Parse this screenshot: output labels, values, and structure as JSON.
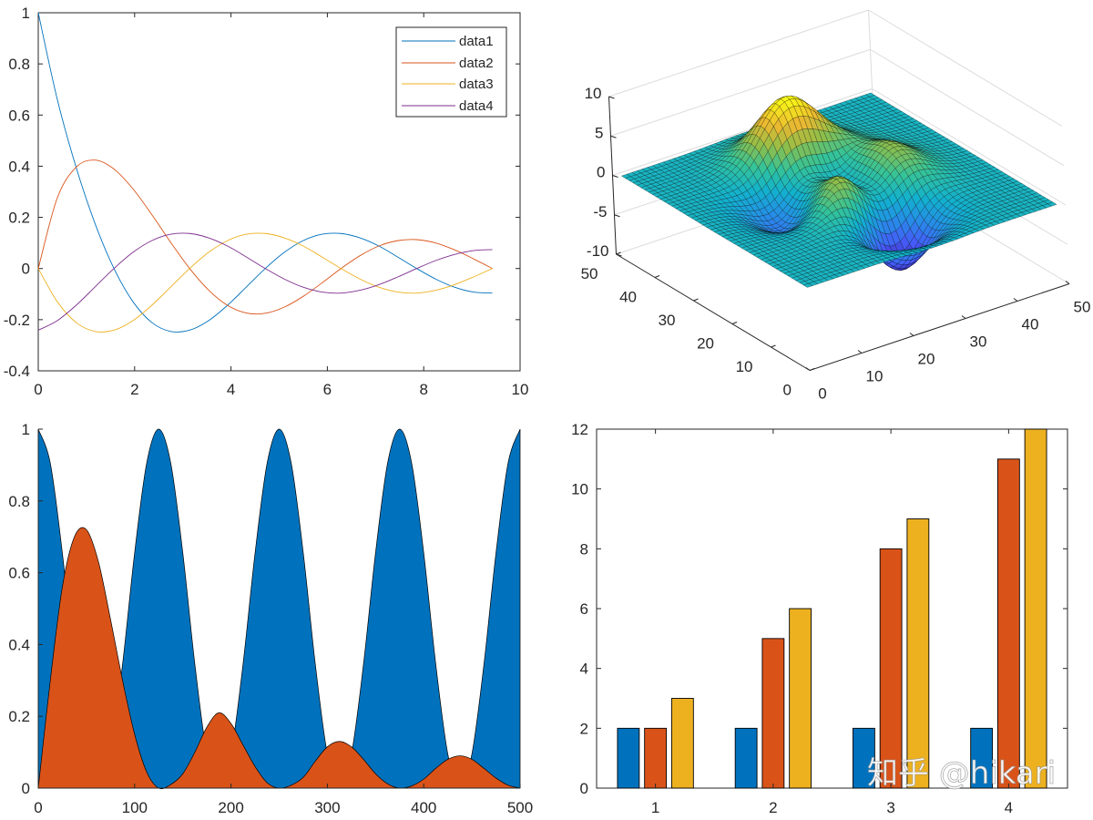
{
  "watermark": {
    "text": "知乎 @hikari"
  },
  "chart_data": [
    {
      "type": "line",
      "xlim": [
        0,
        10
      ],
      "ylim": [
        -0.4,
        1
      ],
      "xticks": [
        0,
        2,
        4,
        6,
        8,
        10
      ],
      "yticks": [
        -0.4,
        -0.2,
        0,
        0.2,
        0.4,
        0.6,
        0.8,
        1
      ],
      "x": [
        0,
        0.393,
        0.785,
        1.178,
        1.571,
        1.963,
        2.356,
        2.749,
        3.142,
        3.534,
        3.927,
        4.32,
        4.712,
        5.105,
        5.498,
        5.89,
        6.283,
        6.676,
        7.069,
        7.461,
        7.854,
        8.247,
        8.639,
        9.032,
        9.425
      ],
      "series": [
        {
          "name": "data1",
          "color": "#0072BD",
          "values": [
            1,
            0.663,
            0.396,
            0.176,
            0,
            -0.129,
            -0.211,
            -0.246,
            -0.241,
            -0.204,
            -0.144,
            -0.072,
            0,
            0.063,
            0.109,
            0.134,
            0.137,
            0.12,
            0.088,
            0.045,
            0,
            -0.041,
            -0.073,
            -0.092,
            -0.096
          ]
        },
        {
          "name": "data2",
          "color": "#D95319",
          "values": [
            0,
            0.275,
            0.396,
            0.424,
            0.389,
            0.312,
            0.211,
            0.102,
            0,
            -0.084,
            -0.144,
            -0.174,
            -0.175,
            -0.151,
            -0.109,
            -0.056,
            0,
            0.05,
            0.088,
            0.109,
            0.113,
            0.1,
            0.073,
            0.038,
            0
          ]
        },
        {
          "name": "data3",
          "color": "#EDB120",
          "values": [
            0,
            -0.129,
            -0.211,
            -0.246,
            -0.241,
            -0.204,
            -0.144,
            -0.072,
            0,
            0.063,
            0.109,
            0.134,
            0.137,
            0.12,
            0.088,
            0.045,
            0,
            -0.041,
            -0.073,
            -0.092,
            -0.096,
            -0.085,
            -0.063,
            -0.033,
            0
          ]
        },
        {
          "name": "data4",
          "color": "#7E2F8E",
          "values": [
            -0.241,
            -0.204,
            -0.144,
            -0.072,
            0,
            0.063,
            0.109,
            0.134,
            0.137,
            0.12,
            0.088,
            0.045,
            0,
            -0.041,
            -0.073,
            -0.092,
            -0.096,
            -0.085,
            -0.063,
            -0.033,
            0,
            0.031,
            0.055,
            0.07,
            0.074
          ]
        }
      ],
      "legend": {
        "position": "top-right"
      }
    },
    {
      "type": "surface",
      "z_function": "peaks",
      "grid_size": 49,
      "xlim": [
        0,
        50
      ],
      "ylim": [
        0,
        50
      ],
      "zlim": [
        -10,
        10
      ],
      "xticks": [
        0,
        10,
        20,
        30,
        40,
        50
      ],
      "yticks": [
        0,
        10,
        20,
        30,
        40,
        50
      ],
      "zticks": [
        -10,
        -5,
        0,
        5,
        10
      ],
      "colormap": "parula",
      "edge_color": "#000000",
      "grid": true
    },
    {
      "type": "area",
      "xlim": [
        0,
        500
      ],
      "ylim": [
        0,
        1
      ],
      "xticks": [
        0,
        100,
        200,
        300,
        400,
        500
      ],
      "yticks": [
        0,
        0.2,
        0.4,
        0.6,
        0.8,
        1
      ],
      "x": [
        0,
        12.5,
        25,
        37.5,
        50,
        62.5,
        75,
        87.5,
        100,
        112.5,
        125,
        137.5,
        150,
        162.5,
        175,
        187.5,
        200,
        212.5,
        225,
        237.5,
        250,
        262.5,
        275,
        287.5,
        300,
        312.5,
        325,
        337.5,
        350,
        362.5,
        375,
        387.5,
        400,
        412.5,
        425,
        437.5,
        450,
        462.5,
        475,
        487.5,
        500
      ],
      "series": [
        {
          "color": "#0072BD",
          "values": [
            1,
            0.905,
            0.655,
            0.345,
            0.095,
            0,
            0.095,
            0.345,
            0.655,
            0.905,
            1,
            0.905,
            0.655,
            0.345,
            0.095,
            0,
            0.095,
            0.345,
            0.655,
            0.905,
            1,
            0.905,
            0.655,
            0.345,
            0.095,
            0,
            0.095,
            0.345,
            0.655,
            0.905,
            1,
            0.905,
            0.655,
            0.345,
            0.095,
            0,
            0.095,
            0.345,
            0.655,
            0.905,
            1
          ]
        },
        {
          "color": "#D95319",
          "values": [
            0,
            0.3,
            0.56,
            0.7,
            0.72,
            0.63,
            0.47,
            0.3,
            0.15,
            0.045,
            0,
            0.01,
            0.04,
            0.1,
            0.17,
            0.21,
            0.18,
            0.12,
            0.06,
            0.015,
            0,
            0.008,
            0.03,
            0.075,
            0.115,
            0.13,
            0.115,
            0.08,
            0.04,
            0.012,
            0,
            0.006,
            0.025,
            0.055,
            0.08,
            0.09,
            0.08,
            0.055,
            0.028,
            0.008,
            0
          ]
        }
      ]
    },
    {
      "type": "bar",
      "categories": [
        1,
        2,
        3,
        4
      ],
      "xlim": [
        0.5,
        4.5
      ],
      "ylim": [
        0,
        12
      ],
      "yticks": [
        0,
        2,
        4,
        6,
        8,
        10,
        12
      ],
      "series": [
        {
          "color": "#0072BD",
          "values": [
            2,
            2,
            2,
            2
          ]
        },
        {
          "color": "#D95319",
          "values": [
            2,
            5,
            8,
            11
          ]
        },
        {
          "color": "#EDB120",
          "values": [
            3,
            6,
            9,
            12
          ]
        }
      ]
    }
  ]
}
